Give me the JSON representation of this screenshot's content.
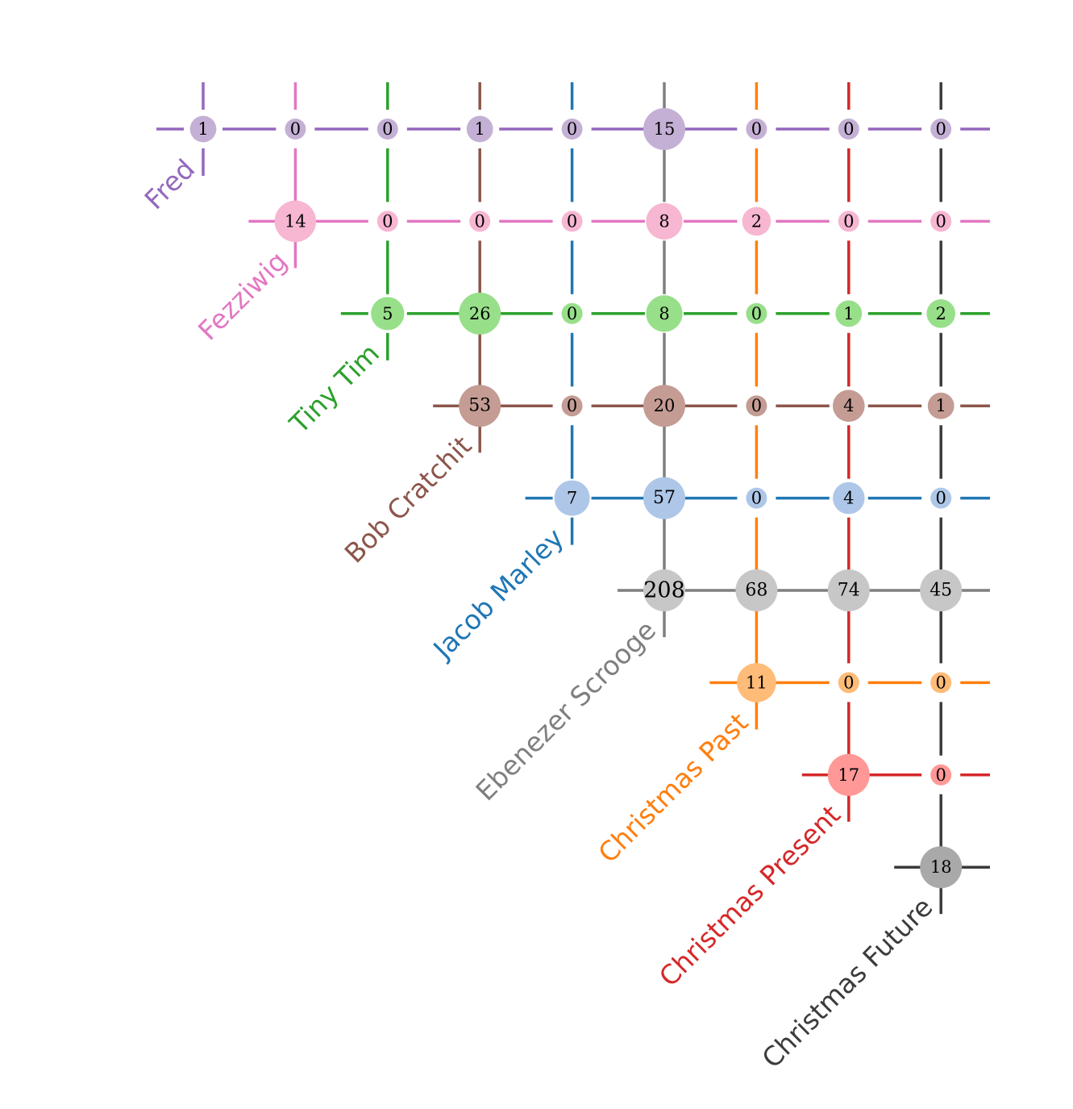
{
  "chart_data": {
    "type": "heatmap",
    "title": "",
    "xlabel": "",
    "ylabel": "",
    "characters": [
      {
        "name": "Fred",
        "color": "#9467bd",
        "light": "#c5b0d5"
      },
      {
        "name": "Fezziwig",
        "color": "#e377c2",
        "light": "#f7b6d2"
      },
      {
        "name": "Tiny Tim",
        "color": "#2ca02c",
        "light": "#98df8a"
      },
      {
        "name": "Bob Cratchit",
        "color": "#8c564b",
        "light": "#c49c94"
      },
      {
        "name": "Jacob Marley",
        "color": "#1f77b4",
        "light": "#aec7e8"
      },
      {
        "name": "Ebenezer Scrooge",
        "color": "#7f7f7f",
        "light": "#c7c7c7"
      },
      {
        "name": "Christmas Past",
        "color": "#ff7f0e",
        "light": "#ffbb78"
      },
      {
        "name": "Christmas Present",
        "color": "#d62728",
        "light": "#ff9896"
      },
      {
        "name": "Christmas Future",
        "color": "#3b3b3b",
        "light": "#a9a9a9"
      }
    ],
    "matrix": [
      [
        1,
        0,
        0,
        1,
        0,
        15,
        0,
        0,
        0
      ],
      [
        null,
        14,
        0,
        0,
        0,
        8,
        2,
        0,
        0
      ],
      [
        null,
        null,
        5,
        26,
        0,
        8,
        0,
        1,
        2
      ],
      [
        null,
        null,
        null,
        53,
        0,
        20,
        0,
        4,
        1
      ],
      [
        null,
        null,
        null,
        null,
        7,
        57,
        0,
        4,
        0
      ],
      [
        null,
        null,
        null,
        null,
        null,
        208,
        68,
        74,
        45
      ],
      [
        null,
        null,
        null,
        null,
        null,
        null,
        11,
        0,
        0
      ],
      [
        null,
        null,
        null,
        null,
        null,
        null,
        null,
        17,
        0
      ],
      [
        null,
        null,
        null,
        null,
        null,
        null,
        null,
        null,
        18
      ]
    ],
    "cell_fill_rule": "color of the row character, except the Bob Cratchit / Christmas Future cell which uses the row character color",
    "grid": true,
    "legend": "none"
  }
}
